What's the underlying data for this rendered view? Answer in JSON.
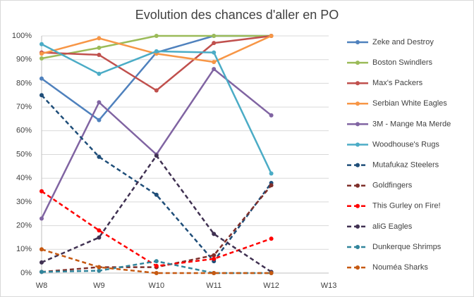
{
  "chart_data": {
    "type": "line",
    "title": "Evolution des chances d'aller en PO",
    "categories": [
      "W8",
      "W9",
      "W10",
      "W11",
      "W12",
      "W13"
    ],
    "ylim": [
      0,
      100
    ],
    "yticks": [
      {
        "value": 0,
        "label": "0%"
      },
      {
        "value": 10,
        "label": "10%"
      },
      {
        "value": 20,
        "label": "20%"
      },
      {
        "value": 30,
        "label": "30%"
      },
      {
        "value": 40,
        "label": "40%"
      },
      {
        "value": 50,
        "label": "50%"
      },
      {
        "value": 60,
        "label": "60%"
      },
      {
        "value": 70,
        "label": "70%"
      },
      {
        "value": 80,
        "label": "80%"
      },
      {
        "value": 90,
        "label": "90%"
      },
      {
        "value": 100,
        "label": "100%"
      }
    ],
    "grid": true,
    "legend": "right",
    "series": [
      {
        "name": "Zeke and Destroy",
        "color": "#4f81bd",
        "dash": false,
        "values": [
          82,
          64.5,
          93,
          100,
          100,
          null
        ]
      },
      {
        "name": "Boston Swindlers",
        "color": "#9bbb59",
        "dash": false,
        "values": [
          90.5,
          95,
          100,
          100,
          100,
          null
        ]
      },
      {
        "name": "Max's Packers",
        "color": "#c0504d",
        "dash": false,
        "values": [
          93,
          92,
          77,
          97,
          100,
          null
        ]
      },
      {
        "name": "Serbian White Eagles",
        "color": "#f79646",
        "dash": false,
        "values": [
          92.5,
          99,
          92.5,
          89,
          100,
          null
        ]
      },
      {
        "name": "3M - Mange Ma Merde",
        "color": "#8064a2",
        "dash": false,
        "values": [
          23,
          72,
          50,
          86,
          66.5,
          null
        ]
      },
      {
        "name": "Woodhouse's Rugs",
        "color": "#4bacc6",
        "dash": false,
        "values": [
          96.5,
          84,
          93.5,
          93,
          42,
          null
        ]
      },
      {
        "name": "Mutafukaz Steelers",
        "color": "#1f4e79",
        "dash": true,
        "values": [
          75,
          49,
          33,
          5,
          38,
          null
        ]
      },
      {
        "name": "Goldfingers",
        "color": "#7f2f2a",
        "dash": true,
        "values": [
          0.5,
          2.5,
          2.5,
          7.5,
          37,
          null
        ]
      },
      {
        "name": "This Gurley on Fire!",
        "color": "#ff0000",
        "dash": true,
        "values": [
          34.5,
          18,
          3,
          6,
          14.5,
          null
        ]
      },
      {
        "name": "aliG Eagles",
        "color": "#403152",
        "dash": true,
        "values": [
          4.5,
          15,
          49.5,
          16.5,
          0.5,
          null
        ]
      },
      {
        "name": "Dunkerque Shrimps",
        "color": "#31859c",
        "dash": true,
        "values": [
          0.5,
          1,
          5,
          0,
          0,
          null
        ]
      },
      {
        "name": "Nouméa Sharks",
        "color": "#c65911",
        "dash": true,
        "values": [
          10,
          2.5,
          0,
          0,
          0,
          null
        ]
      }
    ]
  }
}
